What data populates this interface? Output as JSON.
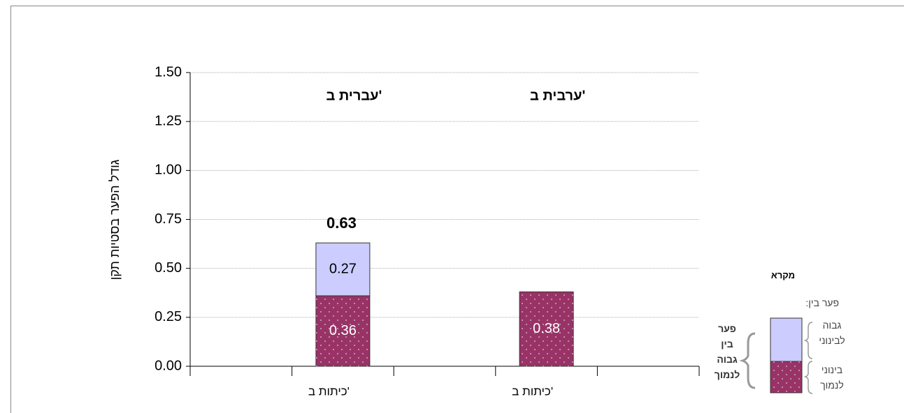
{
  "chart_data": {
    "type": "stacked_bar",
    "y_label": "גודל הפער בסטיות תקן",
    "categories": [
      null,
      "כיתות ב'",
      null,
      "כיתות ב'",
      null
    ],
    "groups": [
      "עברית ב'",
      "ערבית ב'"
    ],
    "series": [
      {
        "name": "בינוני לנמוך",
        "color": "#993366",
        "values": [
          null,
          0.36,
          null,
          0.38,
          null
        ]
      },
      {
        "name": "גבוה לבינוני",
        "color": "#ccccff",
        "values": [
          null,
          0.27,
          null,
          null,
          null
        ]
      }
    ],
    "totals": [
      null,
      0.63,
      null,
      null,
      null
    ],
    "ylim": [
      0,
      1.5
    ],
    "yticks": [
      {
        "value": 0,
        "label": "0.00"
      },
      {
        "value": 0.25,
        "label": "0.25"
      },
      {
        "value": 0.5,
        "label": "0.50"
      },
      {
        "value": 0.75,
        "label": "0.75"
      },
      {
        "value": 1,
        "label": "1.00"
      },
      {
        "value": 1.25,
        "label": "1.25"
      },
      {
        "value": 1.5,
        "label": "1.50"
      }
    ],
    "grid": true,
    "legend": {
      "title": "מקרא",
      "subtitle": "פער בין:",
      "bracket_label": "פער בין גבוה לנמוך"
    }
  }
}
